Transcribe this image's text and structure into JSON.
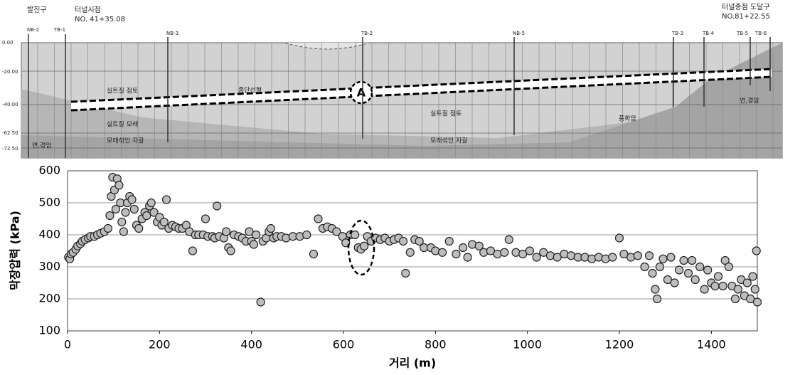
{
  "section": {
    "start_portal": "발진구",
    "start_label": "터널시점",
    "start_station": "NO. 41+35.08",
    "end_label": "터널종점 도달구",
    "end_station": "NO.81+22.55",
    "boreholes": [
      "NB-2",
      "TB-1",
      "NB-3",
      "TB-2",
      "NB-5",
      "TB-3",
      "TB-4",
      "TB-5",
      "TB-6"
    ],
    "elevations": [
      "0.00",
      "-20.00",
      "-40.00",
      "-62.50",
      "-72.50"
    ],
    "layers": [
      "실트질 점토",
      "종단선형",
      "실트질 모래",
      "연,경암",
      "모래섞인 자갈",
      "실트질 점토",
      "풍화암",
      "모래섞인 자갈",
      "연,경암"
    ],
    "marker": "A"
  },
  "chart_data": {
    "type": "scatter",
    "xlabel": "거리 (m)",
    "ylabel": "막장압력 (kPa)",
    "xlim": [
      0,
      1500
    ],
    "ylim": [
      100,
      600
    ],
    "xticks": [
      0,
      200,
      400,
      600,
      800,
      1000,
      1200,
      1400
    ],
    "yticks": [
      100,
      200,
      300,
      400,
      500,
      600
    ],
    "grid": true,
    "color": "#bdbdbd",
    "x": [
      2,
      5,
      8,
      12,
      18,
      22,
      28,
      32,
      38,
      45,
      50,
      58,
      65,
      72,
      80,
      88,
      92,
      95,
      98,
      102,
      105,
      108,
      112,
      115,
      118,
      122,
      126,
      130,
      135,
      140,
      145,
      150,
      155,
      162,
      168,
      172,
      178,
      182,
      188,
      195,
      200,
      205,
      210,
      215,
      220,
      228,
      235,
      242,
      250,
      258,
      265,
      272,
      278,
      285,
      295,
      300,
      305,
      315,
      320,
      325,
      330,
      340,
      345,
      350,
      355,
      362,
      372,
      380,
      388,
      395,
      400,
      405,
      410,
      420,
      425,
      432,
      438,
      442,
      448,
      455,
      465,
      475,
      490,
      505,
      520,
      535,
      545,
      555,
      565,
      575,
      585,
      598,
      605,
      615,
      625,
      632,
      638,
      645,
      652,
      660,
      670,
      680,
      690,
      700,
      710,
      720,
      730,
      735,
      745,
      755,
      765,
      775,
      790,
      800,
      815,
      830,
      845,
      860,
      870,
      880,
      895,
      905,
      920,
      935,
      950,
      960,
      975,
      990,
      1005,
      1020,
      1035,
      1050,
      1065,
      1080,
      1095,
      1110,
      1125,
      1140,
      1155,
      1170,
      1185,
      1200,
      1210,
      1225,
      1240,
      1255,
      1265,
      1272,
      1278,
      1282,
      1288,
      1295,
      1305,
      1312,
      1320,
      1330,
      1340,
      1350,
      1358,
      1365,
      1375,
      1385,
      1392,
      1400,
      1408,
      1415,
      1425,
      1430,
      1438,
      1445,
      1452,
      1458,
      1465,
      1472,
      1478,
      1485,
      1490,
      1495,
      1498,
      1500
    ],
    "values": [
      330,
      325,
      340,
      345,
      355,
      365,
      372,
      380,
      385,
      390,
      395,
      395,
      400,
      405,
      410,
      420,
      460,
      520,
      580,
      540,
      480,
      575,
      555,
      500,
      440,
      410,
      470,
      500,
      520,
      510,
      480,
      430,
      420,
      450,
      470,
      460,
      490,
      500,
      470,
      440,
      455,
      430,
      440,
      510,
      420,
      430,
      425,
      420,
      420,
      430,
      410,
      350,
      400,
      400,
      400,
      450,
      395,
      395,
      390,
      490,
      395,
      390,
      410,
      360,
      350,
      400,
      395,
      390,
      380,
      410,
      380,
      370,
      400,
      190,
      380,
      390,
      410,
      420,
      390,
      395,
      395,
      390,
      395,
      395,
      400,
      340,
      450,
      420,
      425,
      420,
      410,
      395,
      375,
      400,
      400,
      360,
      355,
      365,
      395,
      380,
      390,
      385,
      390,
      380,
      385,
      390,
      380,
      280,
      345,
      385,
      380,
      360,
      360,
      350,
      345,
      380,
      340,
      360,
      330,
      370,
      365,
      345,
      350,
      340,
      345,
      385,
      345,
      340,
      350,
      330,
      345,
      335,
      330,
      340,
      335,
      330,
      330,
      325,
      330,
      325,
      330,
      390,
      340,
      330,
      335,
      300,
      335,
      280,
      230,
      200,
      300,
      325,
      260,
      330,
      250,
      290,
      320,
      280,
      320,
      260,
      300,
      230,
      290,
      250,
      240,
      270,
      240,
      320,
      300,
      240,
      200,
      230,
      260,
      210,
      250,
      200,
      270,
      230,
      350,
      190
    ]
  }
}
